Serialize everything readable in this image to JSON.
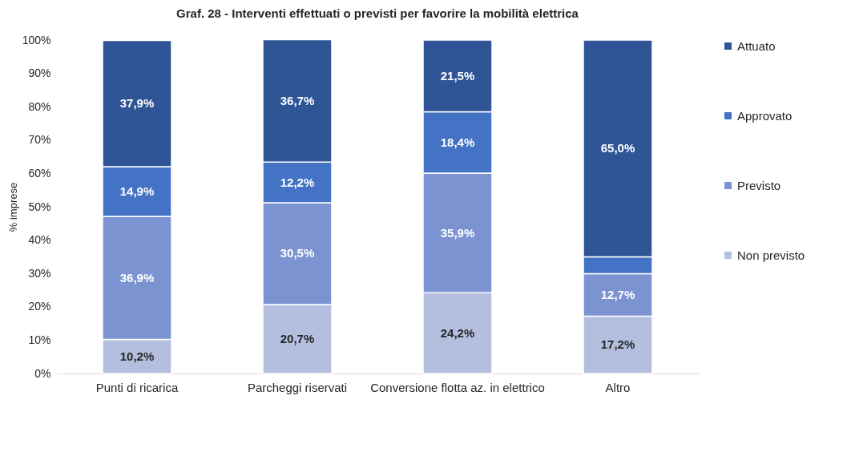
{
  "chart_data": {
    "type": "bar",
    "title": "Graf. 28 - Interventi effettuati o previsti per favorire la mobilità elettrica",
    "ylabel": "% imprese",
    "categories": [
      "Punti di ricarica",
      "Parcheggi riservati",
      "Conversione flotta az. in elettrico",
      "Altro"
    ],
    "stacked": true,
    "ylim": [
      0,
      100
    ],
    "yticks": [
      {
        "value": 0,
        "label": "0%"
      },
      {
        "value": 10,
        "label": "10%"
      },
      {
        "value": 20,
        "label": "20%"
      },
      {
        "value": 30,
        "label": "30%"
      },
      {
        "value": 40,
        "label": "40%"
      },
      {
        "value": 50,
        "label": "50%"
      },
      {
        "value": 60,
        "label": "60%"
      },
      {
        "value": 70,
        "label": "70%"
      },
      {
        "value": 80,
        "label": "80%"
      },
      {
        "value": 90,
        "label": "90%"
      },
      {
        "value": 100,
        "label": "100%"
      }
    ],
    "grid": false,
    "legend": "right",
    "series": [
      {
        "name": "Non previsto",
        "color": "#b4bfe0",
        "values": [
          10.2,
          20.7,
          24.2,
          17.2
        ],
        "value_labels": [
          "10,2%",
          "20,7%",
          "24,2%",
          "17,2%"
        ]
      },
      {
        "name": "Previsto",
        "color": "#7b93d0",
        "values": [
          36.9,
          30.5,
          35.9,
          12.7
        ],
        "value_labels": [
          "36,9%",
          "30,5%",
          "35,9%",
          "12,7%"
        ]
      },
      {
        "name": "Approvato",
        "color": "#4472c4",
        "values": [
          14.9,
          12.2,
          18.4,
          5.1
        ],
        "value_labels": [
          "14,9%",
          "12,2%",
          "18,4%",
          null
        ]
      },
      {
        "name": "Attuato",
        "color": "#2f5597",
        "values": [
          37.9,
          36.7,
          21.5,
          65.0
        ],
        "value_labels": [
          "37,9%",
          "36,7%",
          "21,5%",
          "65,0%"
        ]
      }
    ]
  }
}
